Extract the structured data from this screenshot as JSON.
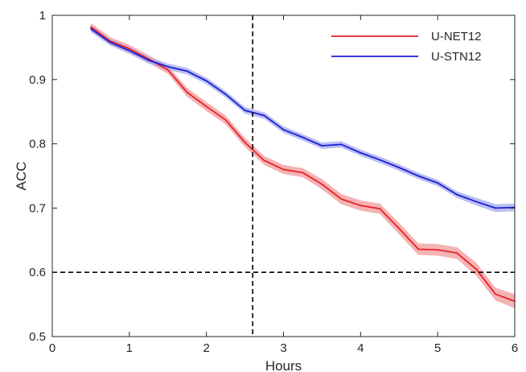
{
  "chart_data": {
    "type": "line",
    "xlabel": "Hours",
    "ylabel": "ACC",
    "xlim": [
      0,
      6
    ],
    "ylim": [
      0.5,
      1
    ],
    "x_ticks": [
      "0",
      "1",
      "2",
      "3",
      "4",
      "5",
      "6"
    ],
    "y_ticks": [
      "0.5",
      "0.6",
      "0.7",
      "0.8",
      "0.9",
      "1"
    ],
    "grid": false,
    "legend_position": "top-right",
    "reference_lines": {
      "vertical_x": 2.6,
      "horizontal_y": 0.6,
      "style": "dashed",
      "color": "#000000"
    },
    "series": [
      {
        "name": "U-NET12",
        "color": "#e8202a",
        "band_color": "#f29a9a",
        "x": [
          0.5,
          0.75,
          1.0,
          1.25,
          1.5,
          1.75,
          2.0,
          2.25,
          2.5,
          2.75,
          3.0,
          3.25,
          3.5,
          3.75,
          4.0,
          4.25,
          4.5,
          4.75,
          5.0,
          5.25,
          5.5,
          5.75,
          6.0
        ],
        "y": [
          0.982,
          0.96,
          0.948,
          0.932,
          0.915,
          0.88,
          0.858,
          0.837,
          0.802,
          0.774,
          0.76,
          0.755,
          0.737,
          0.714,
          0.704,
          0.699,
          0.668,
          0.636,
          0.635,
          0.63,
          0.605,
          0.566,
          0.555
        ],
        "band": [
          0.006,
          0.006,
          0.006,
          0.006,
          0.006,
          0.007,
          0.007,
          0.007,
          0.007,
          0.007,
          0.007,
          0.007,
          0.008,
          0.008,
          0.008,
          0.008,
          0.009,
          0.009,
          0.009,
          0.009,
          0.01,
          0.01,
          0.011
        ]
      },
      {
        "name": "U-STN12",
        "color": "#1a20d6",
        "band_color": "#a3a8ef",
        "x": [
          0.5,
          0.75,
          1.0,
          1.25,
          1.5,
          1.75,
          2.0,
          2.25,
          2.5,
          2.75,
          3.0,
          3.25,
          3.5,
          3.75,
          4.0,
          4.25,
          4.5,
          4.75,
          5.0,
          5.25,
          5.5,
          5.75,
          6.0
        ],
        "y": [
          0.979,
          0.958,
          0.945,
          0.93,
          0.92,
          0.913,
          0.898,
          0.877,
          0.852,
          0.844,
          0.822,
          0.81,
          0.797,
          0.799,
          0.786,
          0.775,
          0.763,
          0.75,
          0.739,
          0.721,
          0.71,
          0.7,
          0.701
        ],
        "band": [
          0.005,
          0.005,
          0.005,
          0.005,
          0.005,
          0.005,
          0.005,
          0.005,
          0.005,
          0.005,
          0.005,
          0.005,
          0.005,
          0.005,
          0.005,
          0.005,
          0.005,
          0.005,
          0.005,
          0.005,
          0.006,
          0.006,
          0.006
        ]
      }
    ]
  }
}
